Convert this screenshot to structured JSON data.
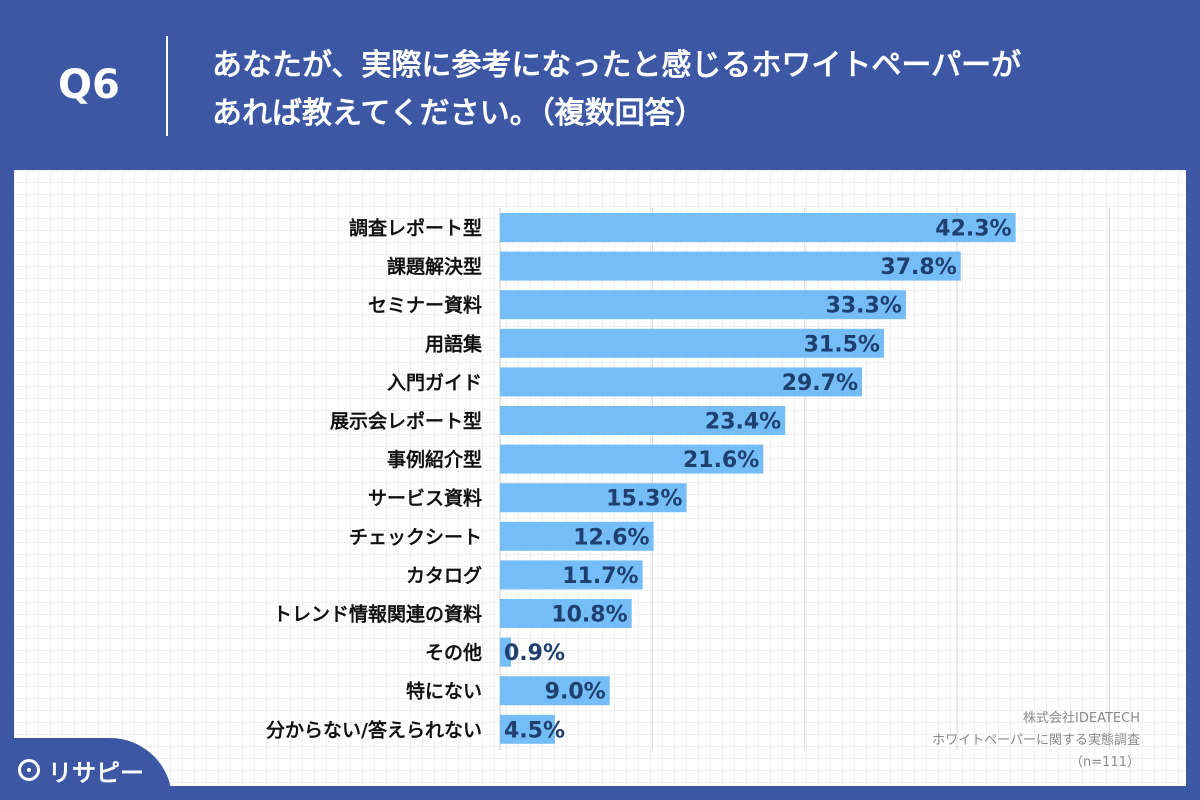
{
  "header": {
    "qnum": "Q6",
    "title_line1": "あなたが、実際に参考になったと感じるホワイトペーパーが",
    "title_line2": "あれば教えてください。（複数回答）"
  },
  "chart_data": {
    "type": "bar",
    "orientation": "horizontal",
    "categories": [
      "調査レポート型",
      "課題解決型",
      "セミナー資料",
      "用語集",
      "入門ガイド",
      "展示会レポート型",
      "事例紹介型",
      "サービス資料",
      "チェックシート",
      "カタログ",
      "トレンド情報関連の資料",
      "その他",
      "特にない",
      "分からない/答えられない"
    ],
    "values": [
      42.3,
      37.8,
      33.3,
      31.5,
      29.7,
      23.4,
      21.6,
      15.3,
      12.6,
      11.7,
      10.8,
      0.9,
      9.0,
      4.5
    ],
    "value_labels": [
      "42.3%",
      "37.8%",
      "33.3%",
      "31.5%",
      "29.7%",
      "23.4%",
      "21.6%",
      "15.3%",
      "12.6%",
      "11.7%",
      "10.8%",
      "0.9%",
      "9.0%",
      "4.5%"
    ],
    "xlim": [
      0,
      50
    ],
    "grid_interval": 12.5,
    "bar_color": "#74bdf7",
    "value_color": "#1f3f6e",
    "grid": true
  },
  "source": {
    "line1": "株式会社IDEATECH",
    "line2": "ホワイトペーパーに関する実態調査",
    "line3": "（n=111）"
  },
  "logo": {
    "text": "リサピー"
  },
  "colors": {
    "background": "#3c58a4",
    "panel": "#ffffff"
  }
}
